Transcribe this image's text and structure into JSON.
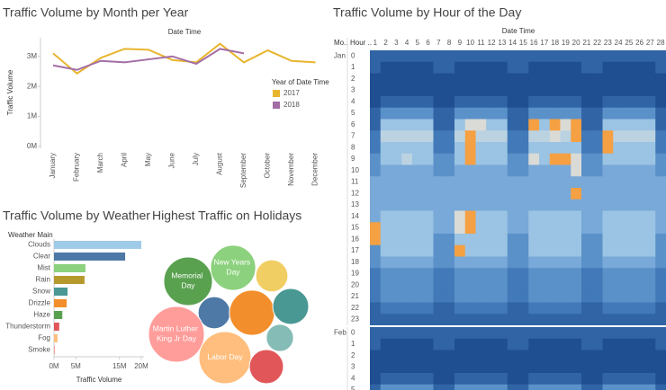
{
  "chart_data": [
    {
      "type": "line",
      "title": "Traffic Volume by Month per Year",
      "x_label": "Date Time",
      "y_label": "Traffic Volume",
      "categories": [
        "January",
        "February",
        "March",
        "April",
        "May",
        "June",
        "July",
        "August",
        "September",
        "October",
        "November",
        "December"
      ],
      "series": [
        {
          "name": "2017",
          "color": "#e8b52f",
          "values": [
            3100000,
            2430000,
            2950000,
            3250000,
            3220000,
            2880000,
            2800000,
            3420000,
            2800000,
            3200000,
            2850000,
            2800000
          ]
        },
        {
          "name": "2018",
          "color": "#a36ea5",
          "values": [
            2700000,
            2550000,
            2850000,
            2800000,
            2900000,
            3000000,
            2750000,
            3250000,
            3100000,
            null,
            null,
            null
          ]
        }
      ],
      "ylim": [
        0,
        3500000
      ],
      "yticks": [
        {
          "value": 0,
          "label": "0M"
        },
        {
          "value": 1000000,
          "label": "1M"
        },
        {
          "value": 2000000,
          "label": "2M"
        },
        {
          "value": 3000000,
          "label": "3M"
        }
      ],
      "legend_title": "Year of Date Time",
      "legend": "right"
    },
    {
      "type": "heatmap",
      "title": "Traffic Volume by Hour of the Day",
      "x_label": "Date Time",
      "row_headers": [
        "Mo..",
        "Hour .."
      ],
      "columns": [
        1,
        2,
        3,
        4,
        5,
        6,
        7,
        8,
        9,
        10,
        11,
        12,
        13,
        14,
        15,
        16,
        17,
        18,
        19,
        20,
        21,
        22,
        23,
        24,
        25,
        26,
        27,
        28
      ],
      "colors": [
        "#1f4f91",
        "#3d74b5",
        "#6a9fd3",
        "#a9cde8",
        "#e0ddd4",
        "#f5a042"
      ],
      "vlim": [
        0,
        9
      ],
      "groups": [
        {
          "name": "Jan",
          "rows": [
            0,
            1,
            2,
            3,
            4,
            5,
            6,
            7,
            8,
            9,
            10,
            11,
            12,
            13,
            14,
            15,
            16,
            17,
            18,
            19,
            20,
            21,
            22,
            23
          ],
          "values": [
            [
              1,
              1,
              1,
              1,
              1,
              1,
              1,
              1,
              1,
              1,
              1,
              1,
              1,
              1,
              1,
              1,
              1,
              1,
              1,
              1,
              1,
              1,
              1,
              1,
              1,
              1,
              1,
              1
            ],
            [
              1,
              0,
              0,
              0,
              0,
              0,
              1,
              1,
              0,
              0,
              0,
              0,
              0,
              1,
              1,
              0,
              0,
              0,
              0,
              0,
              1,
              1,
              0,
              0,
              0,
              0,
              0,
              1
            ],
            [
              0,
              0,
              0,
              0,
              0,
              0,
              0,
              0,
              0,
              0,
              0,
              0,
              0,
              0,
              0,
              0,
              0,
              0,
              0,
              0,
              0,
              0,
              0,
              0,
              0,
              0,
              0,
              0
            ],
            [
              0,
              0,
              0,
              0,
              0,
              0,
              0,
              0,
              0,
              0,
              0,
              0,
              0,
              0,
              0,
              0,
              0,
              0,
              0,
              0,
              0,
              0,
              0,
              0,
              0,
              0,
              0,
              0
            ],
            [
              0,
              1,
              1,
              1,
              1,
              1,
              0,
              0,
              1,
              1,
              1,
              1,
              1,
              0,
              0,
              1,
              1,
              1,
              1,
              1,
              0,
              0,
              1,
              1,
              1,
              1,
              1,
              0
            ],
            [
              1,
              3,
              3,
              3,
              3,
              3,
              1,
              1,
              3,
              3,
              3,
              3,
              3,
              1,
              1,
              3,
              3,
              3,
              3,
              3,
              1,
              1,
              3,
              3,
              3,
              3,
              3,
              1
            ],
            [
              1,
              5,
              5,
              5,
              5,
              5,
              1,
              1,
              5,
              7,
              7,
              5,
              5,
              1,
              1,
              9,
              5,
              9,
              7,
              9,
              1,
              1,
              5,
              5,
              5,
              5,
              5,
              1
            ],
            [
              2,
              6,
              6,
              6,
              6,
              6,
              2,
              2,
              6,
              9,
              6,
              6,
              6,
              2,
              2,
              6,
              6,
              7,
              6,
              9,
              2,
              2,
              9,
              6,
              6,
              6,
              6,
              2
            ],
            [
              2,
              5,
              5,
              5,
              5,
              5,
              2,
              2,
              5,
              9,
              5,
              5,
              5,
              2,
              2,
              5,
              5,
              5,
              5,
              5,
              2,
              2,
              9,
              5,
              5,
              5,
              5,
              2
            ],
            [
              3,
              5,
              5,
              6,
              5,
              5,
              3,
              3,
              5,
              9,
              5,
              5,
              5,
              3,
              3,
              7,
              5,
              9,
              9,
              7,
              3,
              3,
              5,
              5,
              5,
              5,
              5,
              3
            ],
            [
              3,
              4,
              4,
              4,
              4,
              4,
              3,
              3,
              4,
              4,
              4,
              4,
              4,
              3,
              3,
              4,
              4,
              4,
              4,
              7,
              3,
              3,
              4,
              4,
              4,
              4,
              4,
              3
            ],
            [
              4,
              4,
              4,
              4,
              4,
              4,
              4,
              4,
              4,
              4,
              4,
              4,
              4,
              4,
              4,
              4,
              4,
              4,
              4,
              4,
              4,
              4,
              4,
              4,
              4,
              4,
              4,
              4
            ],
            [
              4,
              4,
              4,
              4,
              4,
              4,
              4,
              4,
              4,
              4,
              4,
              4,
              4,
              4,
              4,
              4,
              4,
              4,
              4,
              9,
              4,
              4,
              4,
              4,
              4,
              4,
              4,
              4
            ],
            [
              4,
              4,
              4,
              4,
              4,
              4,
              4,
              4,
              4,
              4,
              4,
              4,
              4,
              4,
              4,
              4,
              4,
              4,
              4,
              4,
              4,
              4,
              4,
              4,
              4,
              4,
              4,
              4
            ],
            [
              4,
              5,
              5,
              5,
              5,
              5,
              4,
              4,
              7,
              9,
              5,
              5,
              5,
              4,
              4,
              5,
              5,
              5,
              5,
              5,
              4,
              4,
              5,
              5,
              5,
              5,
              5,
              4
            ],
            [
              9,
              5,
              5,
              5,
              5,
              5,
              4,
              4,
              7,
              9,
              5,
              5,
              5,
              4,
              4,
              5,
              5,
              5,
              5,
              5,
              4,
              4,
              5,
              5,
              5,
              5,
              5,
              4
            ],
            [
              9,
              5,
              5,
              5,
              5,
              5,
              3,
              3,
              5,
              5,
              5,
              5,
              5,
              3,
              3,
              5,
              5,
              5,
              5,
              5,
              3,
              3,
              5,
              5,
              5,
              5,
              5,
              3
            ],
            [
              3,
              5,
              5,
              5,
              5,
              5,
              3,
              3,
              9,
              5,
              5,
              5,
              5,
              3,
              3,
              5,
              5,
              5,
              5,
              5,
              3,
              3,
              5,
              5,
              5,
              5,
              5,
              3
            ],
            [
              3,
              4,
              4,
              4,
              4,
              4,
              3,
              3,
              4,
              4,
              4,
              4,
              4,
              3,
              3,
              4,
              4,
              4,
              4,
              4,
              3,
              3,
              4,
              4,
              4,
              4,
              4,
              3
            ],
            [
              2,
              3,
              3,
              3,
              3,
              3,
              2,
              2,
              3,
              3,
              3,
              3,
              3,
              2,
              2,
              3,
              3,
              3,
              3,
              3,
              2,
              2,
              3,
              3,
              3,
              3,
              3,
              2
            ],
            [
              2,
              3,
              3,
              3,
              3,
              3,
              2,
              2,
              3,
              3,
              3,
              3,
              3,
              2,
              2,
              3,
              3,
              3,
              3,
              3,
              2,
              2,
              3,
              3,
              3,
              3,
              3,
              2
            ],
            [
              2,
              3,
              3,
              3,
              3,
              3,
              2,
              2,
              3,
              3,
              3,
              3,
              3,
              2,
              2,
              3,
              3,
              3,
              3,
              3,
              2,
              2,
              3,
              3,
              3,
              3,
              3,
              2
            ],
            [
              1,
              2,
              2,
              2,
              2,
              2,
              1,
              1,
              2,
              2,
              2,
              2,
              2,
              1,
              1,
              2,
              2,
              2,
              2,
              2,
              1,
              1,
              2,
              2,
              2,
              2,
              2,
              1
            ],
            [
              1,
              1,
              1,
              1,
              1,
              1,
              1,
              1,
              1,
              1,
              1,
              1,
              1,
              1,
              1,
              1,
              1,
              1,
              1,
              1,
              1,
              1,
              1,
              1,
              1,
              1,
              1,
              1
            ]
          ]
        },
        {
          "name": "Feb",
          "rows": [
            0,
            1,
            2,
            3,
            4,
            5
          ],
          "values": [
            [
              1,
              1,
              1,
              1,
              1,
              1,
              1,
              1,
              1,
              1,
              1,
              1,
              1,
              1,
              1,
              1,
              1,
              1,
              1,
              1,
              1,
              1,
              1,
              1,
              1,
              1,
              1,
              1
            ],
            [
              1,
              0,
              0,
              0,
              0,
              0,
              1,
              1,
              0,
              0,
              0,
              0,
              0,
              1,
              1,
              0,
              0,
              0,
              0,
              0,
              1,
              1,
              0,
              0,
              0,
              0,
              0,
              1
            ],
            [
              0,
              0,
              0,
              0,
              0,
              0,
              0,
              0,
              0,
              0,
              0,
              0,
              0,
              0,
              0,
              0,
              0,
              0,
              0,
              0,
              0,
              0,
              0,
              0,
              0,
              0,
              0,
              0
            ],
            [
              0,
              0,
              0,
              0,
              0,
              0,
              0,
              0,
              0,
              0,
              0,
              0,
              0,
              0,
              0,
              0,
              0,
              0,
              0,
              0,
              0,
              0,
              0,
              0,
              0,
              0,
              0,
              0
            ],
            [
              0,
              1,
              1,
              1,
              1,
              1,
              0,
              0,
              1,
              1,
              1,
              1,
              1,
              0,
              0,
              1,
              1,
              1,
              1,
              1,
              0,
              0,
              1,
              1,
              1,
              1,
              1,
              0
            ],
            [
              1,
              3,
              3,
              3,
              3,
              3,
              1,
              1,
              3,
              3,
              3,
              3,
              3,
              1,
              1,
              3,
              3,
              3,
              3,
              3,
              1,
              1,
              3,
              3,
              3,
              3,
              3,
              1
            ]
          ]
        }
      ]
    },
    {
      "type": "hbar",
      "title": "Traffic Volume by Weather",
      "category_label": "Weather Main",
      "x_label": "Traffic Volume",
      "categories": [
        "Clouds",
        "Clear",
        "Mist",
        "Rain",
        "Snow",
        "Drizzle",
        "Haze",
        "Thunderstorm",
        "Fog",
        "Smoke"
      ],
      "values": [
        20000000,
        16300000,
        7200000,
        7000000,
        3100000,
        2900000,
        1900000,
        1200000,
        800000,
        200000
      ],
      "colors": [
        "#a0cbe8",
        "#4e79a7",
        "#8cd17d",
        "#b6992d",
        "#499894",
        "#f28e2b",
        "#59a14f",
        "#e15759",
        "#ffbe7d",
        "#ff9d9a"
      ],
      "xlim": [
        0,
        20000000
      ],
      "xticks": [
        {
          "value": 0,
          "label": "0M"
        },
        {
          "value": 5000000,
          "label": "5M"
        },
        {
          "value": 15000000,
          "label": "15M"
        },
        {
          "value": 20000000,
          "label": "20M"
        }
      ]
    },
    {
      "type": "bubble",
      "title": "Highest Traffic on Holidays",
      "categories": [
        "Memorial Day",
        "New Years Day",
        null,
        null,
        null,
        null,
        "Martin Luther King Jr Day",
        "Labor Day",
        null,
        null
      ],
      "values": [
        73,
        63,
        32,
        32,
        63,
        40,
        96,
        84,
        23,
        36
      ],
      "colors": [
        "#59a14f",
        "#8cd17d",
        "#f1ce63",
        "#4e79a7",
        "#f28e2b",
        "#499894",
        "#ff9d9a",
        "#ffbe7d",
        "#86bcb6",
        "#e15759"
      ]
    }
  ]
}
